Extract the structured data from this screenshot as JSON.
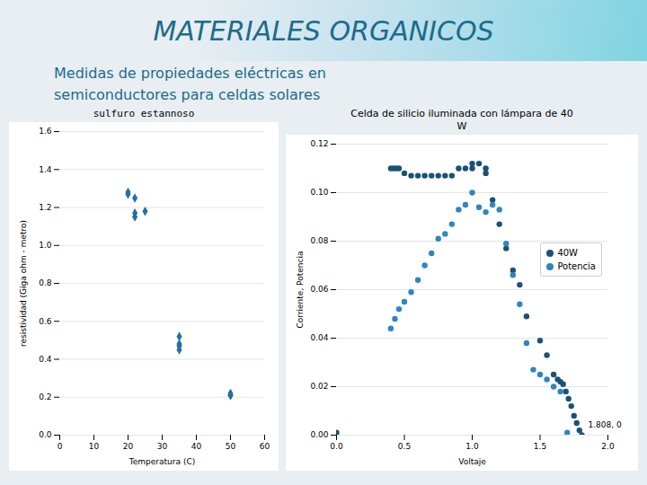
{
  "title": "MATERIALES ORGANICOS",
  "subtitle": "Medidas de propiedades eléctricas en\nsemiconductores para celdas solares",
  "chart_data": [
    {
      "type": "scatter",
      "title": "sulfuro estannoso",
      "xlabel": "Temperatura (C)",
      "ylabel": "resistividad (Giga ohm - metro)",
      "x": [
        20,
        20,
        22,
        22,
        22,
        25,
        35,
        35,
        35,
        35,
        50,
        50,
        50
      ],
      "values": [
        1.27,
        1.28,
        1.25,
        1.17,
        1.15,
        1.18,
        0.52,
        0.48,
        0.47,
        0.45,
        0.22,
        0.21,
        0.21
      ],
      "color": "#2471A3",
      "marker": "diamond",
      "xlim": [
        0,
        60
      ],
      "ylim": [
        0,
        1.6
      ],
      "xticks": [
        0,
        10,
        20,
        30,
        40,
        50,
        60
      ],
      "yticks": [
        {
          "value": 0,
          "label": "0.0"
        },
        0.2,
        0.4,
        0.6,
        0.8,
        {
          "value": 1.0,
          "label": "1.0"
        },
        1.2,
        1.4,
        1.6
      ],
      "grid": true
    },
    {
      "type": "scatter",
      "title": "Celda de silicio iluminada con lámpara de 40\nW",
      "xlabel": "Voltaje",
      "ylabel": "Corriente, Potencia",
      "series": [
        {
          "name": "40W",
          "color": "#1A5276",
          "marker": "circle",
          "x": [
            0,
            0.4,
            0.42,
            0.44,
            0.46,
            0.5,
            0.55,
            0.6,
            0.65,
            0.7,
            0.75,
            0.8,
            0.85,
            0.9,
            0.95,
            1.0,
            1.0,
            1.05,
            1.1,
            1.1,
            1.15,
            1.2,
            1.25,
            1.3,
            1.35,
            1.4,
            1.5,
            1.55,
            1.6,
            1.63,
            1.65,
            1.67,
            1.69,
            1.71,
            1.73,
            1.75,
            1.77,
            1.79,
            1.808
          ],
          "values": [
            0.001,
            0.11,
            0.11,
            0.11,
            0.11,
            0.108,
            0.107,
            0.107,
            0.107,
            0.107,
            0.107,
            0.107,
            0.107,
            0.11,
            0.11,
            0.112,
            0.11,
            0.112,
            0.11,
            0.108,
            0.097,
            0.087,
            0.077,
            0.068,
            0.062,
            0.049,
            0.039,
            0.033,
            0.025,
            0.023,
            0.022,
            0.021,
            0.018,
            0.015,
            0.012,
            0.008,
            0.005,
            0.002,
            0.0
          ]
        },
        {
          "name": "Potencia",
          "color": "#2E86C1",
          "marker": "circle",
          "x": [
            0.4,
            0.43,
            0.46,
            0.5,
            0.55,
            0.6,
            0.65,
            0.7,
            0.75,
            0.8,
            0.85,
            0.9,
            0.95,
            1.0,
            1.05,
            1.1,
            1.15,
            1.2,
            1.25,
            1.3,
            1.35,
            1.4,
            1.45,
            1.5,
            1.55,
            1.6,
            1.65,
            1.7
          ],
          "values": [
            0.044,
            0.048,
            0.052,
            0.055,
            0.059,
            0.064,
            0.07,
            0.075,
            0.081,
            0.083,
            0.087,
            0.093,
            0.095,
            0.1,
            0.094,
            0.092,
            0.095,
            0.093,
            0.079,
            0.066,
            0.054,
            0.038,
            0.027,
            0.025,
            0.023,
            0.02,
            0.018,
            0.001
          ]
        }
      ],
      "legend": "right",
      "annotations": [
        {
          "text": "1.808, 0",
          "x": 1.808,
          "y": 0.002
        }
      ],
      "xlim": [
        0,
        2
      ],
      "ylim": [
        0,
        0.12
      ],
      "xticks": [
        {
          "value": 0,
          "label": "0.0"
        },
        0.5,
        {
          "value": 1,
          "label": "1.0"
        },
        1.5,
        {
          "value": 2,
          "label": "2.0"
        }
      ],
      "yticks": [
        {
          "value": 0,
          "label": "0.00"
        },
        0.02,
        0.04,
        0.06,
        0.08,
        {
          "value": 0.1,
          "label": "0.10"
        },
        0.12
      ],
      "grid": true
    }
  ]
}
